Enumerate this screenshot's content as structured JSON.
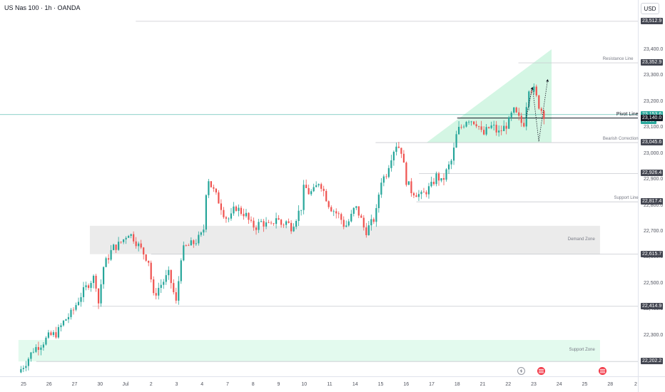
{
  "header": {
    "symbol_title": "US Nas 100 · 1h · OANDA",
    "currency": "USD"
  },
  "colors": {
    "up": "#26a69a",
    "down": "#ef5350",
    "green_fill": "#ccf5df",
    "grey_zone": "#ebebeb",
    "label_dark": "#434651",
    "label_green": "#26a69a",
    "label_black": "#131722"
  },
  "chart_data": {
    "type": "candlestick",
    "instrument": "US Nas 100",
    "timeframe": "1h",
    "source": "OANDA",
    "currency": "USD",
    "grid": false,
    "y_range": [
      22140,
      23545
    ],
    "x_range": [
      -0.2,
      25.9
    ],
    "y_tick_labels": [
      "22,200.0",
      "22,300.0",
      "22,400.0",
      "22,500.0",
      "22,600.0",
      "22,700.0",
      "22,800.0",
      "22,900.0",
      "23,000.0",
      "23,100.0",
      "23,200.0",
      "23,300.0",
      "23,400.0"
    ],
    "y_tick_values": [
      22200,
      22300,
      22400,
      22500,
      22600,
      22700,
      22800,
      22900,
      23000,
      23100,
      23200,
      23300,
      23400
    ],
    "x_tick_labels": [
      "25",
      "26",
      "27",
      "30",
      "Jul",
      "2",
      "3",
      "4",
      "7",
      "8",
      "9",
      "10",
      "11",
      "14",
      "15",
      "16",
      "17",
      "18",
      "21",
      "22",
      "23",
      "24",
      "25",
      "28",
      "2"
    ],
    "x_tick_values": [
      0,
      1,
      2,
      3,
      4,
      5,
      6,
      7,
      8,
      9,
      10,
      11,
      12,
      13,
      14,
      15,
      16,
      17,
      18,
      19,
      20,
      21,
      22,
      23,
      24
    ],
    "price_levels": [
      {
        "value": "23,512.9",
        "y": 23512.9,
        "style": "dark"
      },
      {
        "value": "23,352.9",
        "y": 23352.9,
        "style": "dark"
      },
      {
        "value": "23,153.6",
        "y": 23153.6,
        "style": "green"
      },
      {
        "value": "26:15",
        "y": 23127,
        "style": "green",
        "countdown": true
      },
      {
        "value": "23,140.0",
        "y": 23140.0,
        "style": "black"
      },
      {
        "value": "23,045.6",
        "y": 23045.6,
        "style": "dark"
      },
      {
        "value": "22,926.4",
        "y": 22926.4,
        "style": "dark"
      },
      {
        "value": "22,817.4",
        "y": 22817.4,
        "style": "dark"
      },
      {
        "value": "22,615.7",
        "y": 22615.7,
        "style": "dark"
      },
      {
        "value": "22,414.9",
        "y": 22414.9,
        "style": "dark"
      },
      {
        "value": "22,202.2",
        "y": 22202.2,
        "style": "dark"
      }
    ],
    "horizontal_lines": [
      {
        "y": 23512.9,
        "x_start": 4.4
      },
      {
        "y": 23352.9,
        "x_start": 19.4
      },
      {
        "y": 23045.6,
        "x_start": 13.8
      },
      {
        "y": 22926.4,
        "x_start": 15.5
      },
      {
        "y": 22817.4,
        "x_start": 15.4
      },
      {
        "y": 22615.7,
        "x_start": 5.0
      },
      {
        "y": 22414.9,
        "x_start": 2.7
      },
      {
        "y": 22202.2,
        "x_start": 0.5
      }
    ],
    "current_price": 23153.6,
    "pivot_line": 23140.0,
    "zones": [
      {
        "label": "Demand Zone",
        "y_top": 22725,
        "y_bottom": 22615.7,
        "x_start": 2.6,
        "x_end": 22.6,
        "color": "grey"
      },
      {
        "label": "Support Zone",
        "y_top": 22285,
        "y_bottom": 22202.2,
        "x_start": -0.2,
        "x_end": 22.6,
        "color": "green"
      }
    ],
    "annotations": [
      {
        "text": "Resistance Line",
        "x": 23.9,
        "y": 23352.9
      },
      {
        "text": "Pivot Line",
        "x": 24.1,
        "y": 23140.0,
        "bold": true
      },
      {
        "text": "Bearish Correction",
        "x": 24.1,
        "y": 23045.6
      },
      {
        "text": "Support Line",
        "x": 24.1,
        "y": 22817.4
      },
      {
        "text": "Demand Zone",
        "x": 22.4,
        "y": 22670
      },
      {
        "text": "Support Zone",
        "x": 22.4,
        "y": 22244
      }
    ],
    "triangle": [
      [
        15.8,
        23045.6
      ],
      [
        20.7,
        23045.6
      ],
      [
        20.7,
        23405
      ]
    ],
    "projections": [
      [
        [
          19.7,
          23140
        ],
        [
          19.95,
          23260
        ],
        [
          20.2,
          23050
        ],
        [
          20.55,
          23290
        ]
      ],
      [
        [
          19.7,
          23140
        ],
        [
          19.95,
          23260
        ]
      ]
    ],
    "events": [
      {
        "type": "flash",
        "x": 19.5
      },
      {
        "type": "flag",
        "x": 20.3
      },
      {
        "type": "flag",
        "x": 22.7
      }
    ],
    "price_path": [
      [
        -0.2,
        22160
      ],
      [
        0.1,
        22200
      ],
      [
        0.4,
        22250
      ],
      [
        0.7,
        22270
      ],
      [
        1.0,
        22300
      ],
      [
        1.3,
        22310
      ],
      [
        1.6,
        22360
      ],
      [
        1.9,
        22390
      ],
      [
        2.2,
        22450
      ],
      [
        2.4,
        22480
      ],
      [
        2.6,
        22510
      ],
      [
        2.8,
        22530
      ],
      [
        2.95,
        22420
      ],
      [
        3.1,
        22560
      ],
      [
        3.3,
        22600
      ],
      [
        3.5,
        22640
      ],
      [
        3.7,
        22650
      ],
      [
        3.9,
        22670
      ],
      [
        4.1,
        22700
      ],
      [
        4.3,
        22680
      ],
      [
        4.5,
        22650
      ],
      [
        4.7,
        22620
      ],
      [
        4.9,
        22590
      ],
      [
        5.1,
        22450
      ],
      [
        5.25,
        22480
      ],
      [
        5.4,
        22500
      ],
      [
        5.55,
        22520
      ],
      [
        5.7,
        22540
      ],
      [
        5.85,
        22480
      ],
      [
        6.0,
        22420
      ],
      [
        6.15,
        22600
      ],
      [
        6.3,
        22640
      ],
      [
        6.5,
        22650
      ],
      [
        6.7,
        22660
      ],
      [
        6.9,
        22680
      ],
      [
        7.05,
        22700
      ],
      [
        7.2,
        22920
      ],
      [
        7.35,
        22880
      ],
      [
        7.5,
        22850
      ],
      [
        7.7,
        22810
      ],
      [
        7.9,
        22760
      ],
      [
        8.1,
        22750
      ],
      [
        8.3,
        22800
      ],
      [
        8.5,
        22780
      ],
      [
        8.7,
        22770
      ],
      [
        8.9,
        22730
      ],
      [
        9.1,
        22720
      ],
      [
        9.3,
        22740
      ],
      [
        9.5,
        22730
      ],
      [
        9.7,
        22720
      ],
      [
        9.9,
        22760
      ],
      [
        10.1,
        22730
      ],
      [
        10.3,
        22740
      ],
      [
        10.5,
        22720
      ],
      [
        10.7,
        22760
      ],
      [
        10.9,
        22800
      ],
      [
        11.0,
        22880
      ],
      [
        11.2,
        22850
      ],
      [
        11.4,
        22860
      ],
      [
        11.6,
        22900
      ],
      [
        11.8,
        22850
      ],
      [
        12.0,
        22800
      ],
      [
        12.2,
        22780
      ],
      [
        12.4,
        22760
      ],
      [
        12.6,
        22720
      ],
      [
        12.8,
        22750
      ],
      [
        13.0,
        22800
      ],
      [
        13.2,
        22760
      ],
      [
        13.4,
        22700
      ],
      [
        13.6,
        22730
      ],
      [
        13.8,
        22760
      ],
      [
        14.0,
        22900
      ],
      [
        14.2,
        22920
      ],
      [
        14.4,
        22990
      ],
      [
        14.6,
        23040
      ],
      [
        14.8,
        23020
      ],
      [
        15.0,
        22900
      ],
      [
        15.2,
        22860
      ],
      [
        15.4,
        22850
      ],
      [
        15.6,
        22840
      ],
      [
        15.8,
        22860
      ],
      [
        16.0,
        22880
      ],
      [
        16.2,
        22920
      ],
      [
        16.4,
        22890
      ],
      [
        16.6,
        22940
      ],
      [
        16.8,
        22980
      ],
      [
        17.0,
        23090
      ],
      [
        17.2,
        23110
      ],
      [
        17.4,
        23140
      ],
      [
        17.6,
        23130
      ],
      [
        17.8,
        23120
      ],
      [
        18.0,
        23070
      ],
      [
        18.2,
        23100
      ],
      [
        18.4,
        23110
      ],
      [
        18.6,
        23080
      ],
      [
        18.8,
        23100
      ],
      [
        19.0,
        23120
      ],
      [
        19.2,
        23170
      ],
      [
        19.4,
        23140
      ],
      [
        19.6,
        23110
      ],
      [
        19.8,
        23260
      ],
      [
        20.0,
        23250
      ],
      [
        20.2,
        23190
      ],
      [
        20.4,
        23153.6
      ]
    ]
  }
}
